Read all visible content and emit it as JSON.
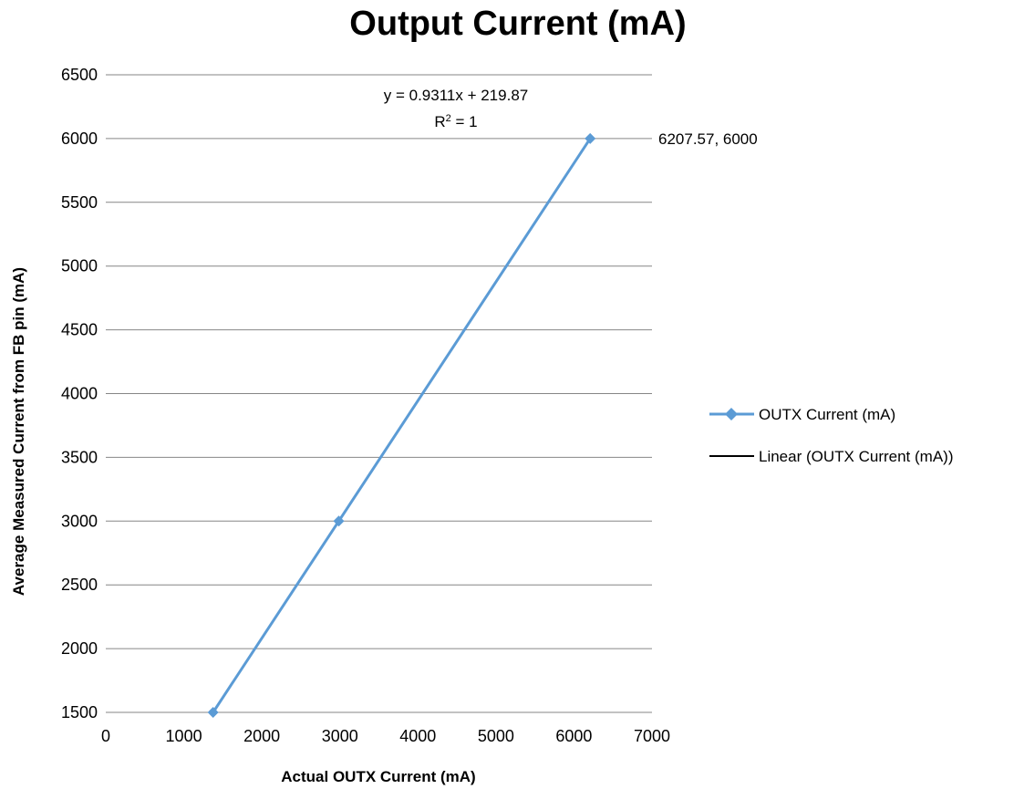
{
  "chart_data": {
    "type": "scatter",
    "title": "Output Current (mA)",
    "xlabel": "Actual OUTX Current (mA)",
    "ylabel": "Average Measured Current from FB pin (mA)",
    "xlim": [
      0,
      7000
    ],
    "ylim": [
      1500,
      6500
    ],
    "xticks": [
      "0",
      "1000",
      "2000",
      "3000",
      "4000",
      "5000",
      "6000",
      "7000"
    ],
    "yticks": [
      "1500",
      "2000",
      "2500",
      "3000",
      "3500",
      "4000",
      "4500",
      "5000",
      "5500",
      "6000",
      "6500"
    ],
    "grid": "horizontal",
    "legend_position": "right",
    "series": [
      {
        "name": "OUTX Current (mA)",
        "color": "#5b9bd5",
        "marker": "diamond",
        "points": [
          {
            "x": 1375,
            "y": 1500
          },
          {
            "x": 2986,
            "y": 3000
          },
          {
            "x": 6207.57,
            "y": 6000
          }
        ]
      }
    ],
    "trendline": {
      "name": "Linear (OUTX Current (mA))",
      "color": "#000000",
      "slope": 0.9311,
      "intercept": 219.87,
      "equation": "y = 0.9311x + 219.87",
      "r2_prefix": "R",
      "r2_sup": "2",
      "r2_suffix": " = 1"
    },
    "data_label": "6207.57, 6000"
  }
}
